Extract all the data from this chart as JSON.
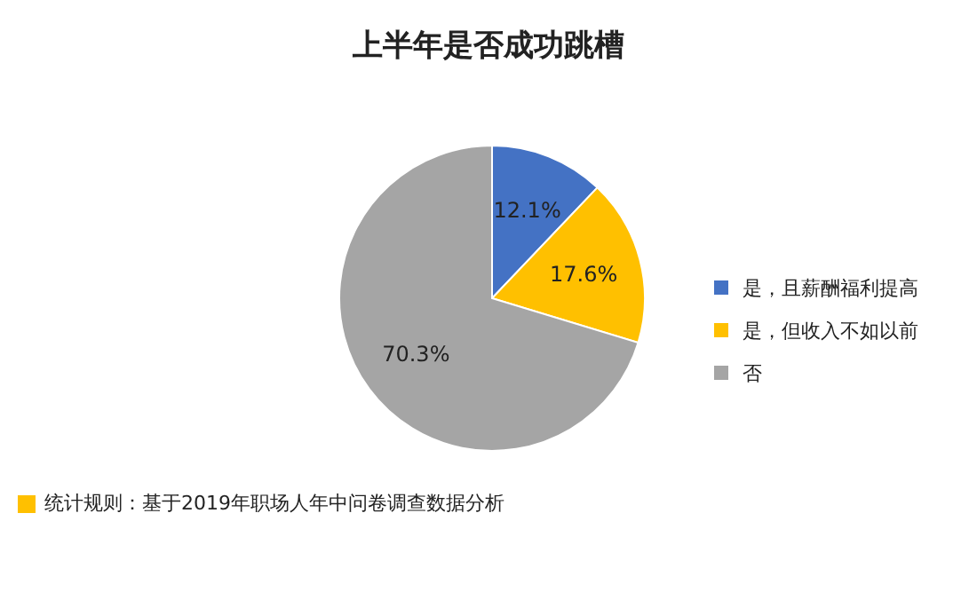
{
  "chart_data": {
    "type": "pie",
    "title": "上半年是否成功跳槽",
    "categories": [
      "是，且薪酬福利提高",
      "是，但收入不如以前",
      "否"
    ],
    "values": [
      12.1,
      17.6,
      70.3
    ],
    "colors": [
      "#4472c4",
      "#ffc000",
      "#a5a5a5"
    ],
    "value_labels": [
      "12.1%",
      "17.6%",
      "70.3%"
    ],
    "legend": "right",
    "annotations": [
      "统计规则：基于2019年职场人年中问卷调查数据分析"
    ]
  }
}
